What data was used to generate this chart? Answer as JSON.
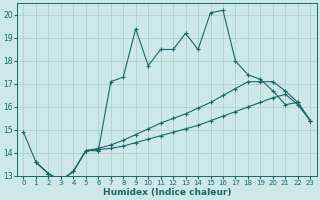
{
  "xlabel": "Humidex (Indice chaleur)",
  "bg_color": "#cce8e8",
  "grid_color": "#aacccc",
  "line_color": "#1a6666",
  "xlim": [
    -0.5,
    23.5
  ],
  "ylim": [
    13.0,
    20.5
  ],
  "xticks": [
    0,
    1,
    2,
    3,
    4,
    5,
    6,
    7,
    8,
    9,
    10,
    11,
    12,
    13,
    14,
    15,
    16,
    17,
    18,
    19,
    20,
    21,
    22,
    23
  ],
  "yticks": [
    13,
    14,
    15,
    16,
    17,
    18,
    19,
    20
  ],
  "line1_x": [
    0,
    1,
    2,
    3,
    4,
    5,
    6,
    7,
    8,
    9,
    10,
    11,
    12,
    13,
    14,
    15,
    16,
    17,
    18,
    19,
    20,
    21,
    22,
    23
  ],
  "line1_y": [
    14.9,
    13.6,
    13.1,
    12.8,
    13.2,
    14.1,
    14.1,
    17.1,
    17.3,
    19.4,
    17.8,
    18.5,
    18.5,
    19.2,
    18.5,
    20.1,
    20.2,
    18.0,
    17.4,
    17.2,
    16.7,
    16.1,
    16.2,
    15.4
  ],
  "line2_x": [
    1,
    2,
    3,
    4,
    5,
    6,
    7,
    8,
    9,
    10,
    11,
    12,
    13,
    14,
    15,
    16,
    17,
    18,
    19,
    20,
    21,
    22,
    23
  ],
  "line2_y": [
    13.6,
    13.1,
    12.8,
    13.2,
    14.1,
    14.15,
    14.2,
    14.3,
    14.45,
    14.6,
    14.75,
    14.9,
    15.05,
    15.2,
    15.4,
    15.6,
    15.8,
    16.0,
    16.2,
    16.4,
    16.55,
    16.1,
    15.4
  ],
  "line3_x": [
    1,
    2,
    3,
    4,
    5,
    6,
    7,
    8,
    9,
    10,
    11,
    12,
    13,
    14,
    15,
    16,
    17,
    18,
    19,
    20,
    21,
    22,
    23
  ],
  "line3_y": [
    13.6,
    13.1,
    12.8,
    13.2,
    14.1,
    14.2,
    14.35,
    14.55,
    14.8,
    15.05,
    15.3,
    15.5,
    15.7,
    15.95,
    16.2,
    16.5,
    16.8,
    17.1,
    17.1,
    17.1,
    16.7,
    16.2,
    15.4
  ]
}
